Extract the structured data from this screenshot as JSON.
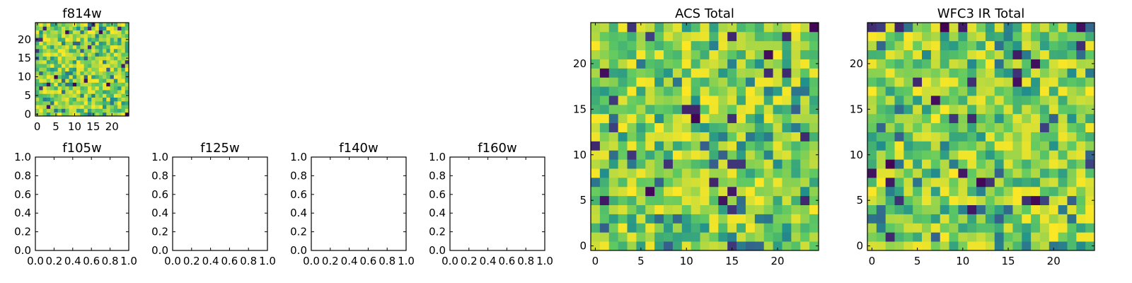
{
  "chart_data": [
    {
      "type": "heatmap",
      "title": "f814w",
      "grid_size": 25,
      "xticks": [
        "0",
        "5",
        "10",
        "15",
        "20"
      ],
      "yticks": [
        "0",
        "5",
        "10",
        "15",
        "20"
      ],
      "xlim": [
        -0.5,
        24.5
      ],
      "ylim": [
        -0.5,
        24.5
      ],
      "colormap": "viridis",
      "values": "25x25 pixel intensity map (approximate, regenerated pattern)"
    },
    {
      "type": "heatmap",
      "title": "f105w",
      "empty": true,
      "xticks": [
        "0.0",
        "0.2",
        "0.4",
        "0.6",
        "0.8",
        "1.0"
      ],
      "yticks": [
        "0.0",
        "0.2",
        "0.4",
        "0.6",
        "0.8",
        "1.0"
      ],
      "xlim": [
        0,
        1
      ],
      "ylim": [
        0,
        1
      ]
    },
    {
      "type": "heatmap",
      "title": "f125w",
      "empty": true,
      "xticks": [
        "0.0",
        "0.2",
        "0.4",
        "0.6",
        "0.8",
        "1.0"
      ],
      "yticks": [
        "0.0",
        "0.2",
        "0.4",
        "0.6",
        "0.8",
        "1.0"
      ],
      "xlim": [
        0,
        1
      ],
      "ylim": [
        0,
        1
      ]
    },
    {
      "type": "heatmap",
      "title": "f140w",
      "empty": true,
      "xticks": [
        "0.0",
        "0.2",
        "0.4",
        "0.6",
        "0.8",
        "1.0"
      ],
      "yticks": [
        "0.0",
        "0.2",
        "0.4",
        "0.6",
        "0.8",
        "1.0"
      ],
      "xlim": [
        0,
        1
      ],
      "ylim": [
        0,
        1
      ]
    },
    {
      "type": "heatmap",
      "title": "f160w",
      "empty": true,
      "xticks": [
        "0.0",
        "0.2",
        "0.4",
        "0.6",
        "0.8",
        "1.0"
      ],
      "yticks": [
        "0.0",
        "0.2",
        "0.4",
        "0.6",
        "0.8",
        "1.0"
      ],
      "xlim": [
        0,
        1
      ],
      "ylim": [
        0,
        1
      ]
    },
    {
      "type": "heatmap",
      "title": "ACS Total",
      "grid_size": 25,
      "xticks": [
        "0",
        "5",
        "10",
        "15",
        "20"
      ],
      "yticks": [
        "0",
        "5",
        "10",
        "15",
        "20"
      ],
      "xlim": [
        -0.5,
        24.5
      ],
      "ylim": [
        -0.5,
        24.5
      ],
      "colormap": "viridis",
      "values": "25x25 pixel intensity map (approximate, regenerated pattern)"
    },
    {
      "type": "heatmap",
      "title": "WFC3 IR Total",
      "grid_size": 25,
      "xticks": [
        "0",
        "5",
        "10",
        "15",
        "20"
      ],
      "yticks": [
        "0",
        "5",
        "10",
        "15",
        "20"
      ],
      "xlim": [
        -0.5,
        24.5
      ],
      "ylim": [
        -0.5,
        24.5
      ],
      "colormap": "viridis",
      "values": "25x25 pixel intensity map (approximate, regenerated pattern)"
    }
  ],
  "colors": {
    "viridis": [
      "#440154",
      "#3b528b",
      "#21918c",
      "#5ec962",
      "#fde725"
    ],
    "axes": "#000000",
    "background": "#ffffff"
  }
}
